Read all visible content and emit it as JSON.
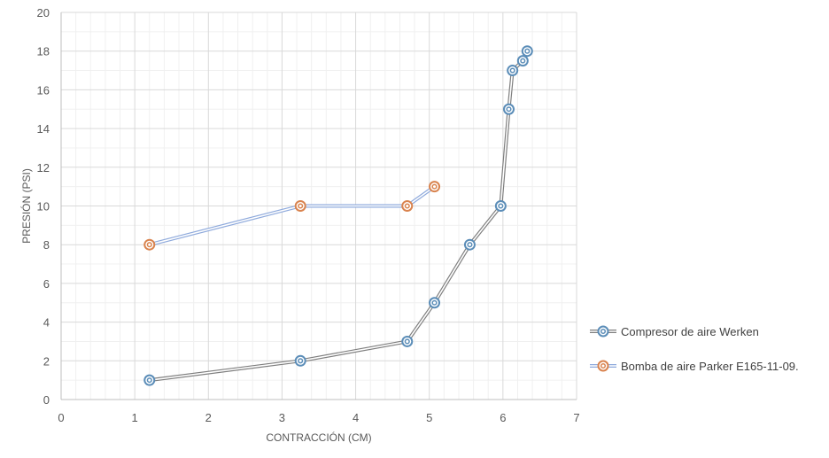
{
  "chart_data": {
    "type": "scatter",
    "xlabel": "CONTRACCIÓN (CM)",
    "ylabel": "PRESIÓN (PSI)",
    "xlim": [
      0,
      7
    ],
    "ylim": [
      0,
      20
    ],
    "x_ticks": [
      0,
      1,
      2,
      3,
      4,
      5,
      6,
      7
    ],
    "y_ticks": [
      0,
      2,
      4,
      6,
      8,
      10,
      12,
      14,
      16,
      18,
      20
    ],
    "grid": true,
    "minor_grid": true,
    "legend_position": "right",
    "markers": "circled-dot",
    "lines": "connected",
    "series": [
      {
        "name": "Compresor de aire Werken",
        "color": "#5b8db8",
        "line_color": "#7f7f7f",
        "points": [
          {
            "x": 1.2,
            "y": 1
          },
          {
            "x": 3.25,
            "y": 2
          },
          {
            "x": 4.7,
            "y": 3
          },
          {
            "x": 5.07,
            "y": 5
          },
          {
            "x": 5.55,
            "y": 8
          },
          {
            "x": 5.97,
            "y": 10
          },
          {
            "x": 6.08,
            "y": 15
          },
          {
            "x": 6.13,
            "y": 17
          },
          {
            "x": 6.27,
            "y": 17.5
          },
          {
            "x": 6.33,
            "y": 18
          }
        ]
      },
      {
        "name": "Bomba de aire Parker E165-11-09.",
        "color": "#d9834e",
        "line_color": "#8faadc",
        "points": [
          {
            "x": 1.2,
            "y": 8
          },
          {
            "x": 3.25,
            "y": 10
          },
          {
            "x": 4.7,
            "y": 10
          },
          {
            "x": 5.07,
            "y": 11
          }
        ]
      }
    ]
  }
}
